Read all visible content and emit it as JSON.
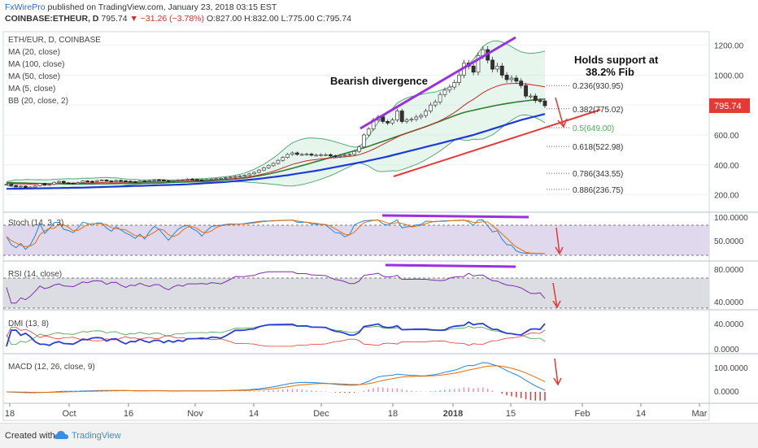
{
  "header": {
    "publisher": "FxWirePro",
    "published_text": "published on TradingView.com, January 23, 2018 03:15 EST",
    "ticker": "COINBASE:ETHEUR, D",
    "last": "795.74",
    "change": "▼ −31.26 (−3.78%)",
    "ohlc": "O:827.00 H:832.00 L:775.00 C:795.74"
  },
  "footer": {
    "created": "Created with",
    "brand": "TradingView"
  },
  "price_legend": [
    "ETH/EUR, D, COINBASE",
    "MA (20, close)",
    "MA (100, close)",
    "MA (50, close)",
    "MA (5, close)",
    "BB (20, close, 2)"
  ],
  "annotations": {
    "divergence": "Bearish divergence",
    "support": [
      "Holds support at",
      "38.2% Fib"
    ]
  },
  "price_badge": "795.74",
  "fib_levels": [
    {
      "label": "0.236(930.95)",
      "value": 930.95,
      "color": "#333333"
    },
    {
      "label": "0.382(775.02)",
      "value": 775.02,
      "color": "#333333"
    },
    {
      "label": "0.5(649.00)",
      "value": 649.0,
      "color": "#4caf50"
    },
    {
      "label": "0.618(522.98)",
      "value": 522.98,
      "color": "#333333"
    },
    {
      "label": "0.786(343.55)",
      "value": 343.55,
      "color": "#333333"
    },
    {
      "label": "0.886(236.75)",
      "value": 236.75,
      "color": "#333333"
    }
  ],
  "panes": {
    "stoch": {
      "label": "Stoch (14, 3, 3)",
      "ticks": [
        "100.0000",
        "50.0000"
      ]
    },
    "rsi": {
      "label": "RSI (14, close)",
      "ticks": [
        "80.0000",
        "40.0000"
      ]
    },
    "dmi": {
      "label": "DMI (13, 8)",
      "ticks": [
        "40.0000",
        "0.0000"
      ]
    },
    "macd": {
      "label": "MACD (12, 26, close, 9)",
      "ticks": [
        "100.0000",
        "0.0000"
      ]
    }
  },
  "x_labels": [
    "18",
    "Oct",
    "16",
    "Nov",
    "14",
    "Dec",
    "18",
    "2018",
    "15",
    "Feb",
    "14",
    "Mar"
  ],
  "chart_data": {
    "type": "line",
    "y_ticks": [
      1200,
      1000,
      800,
      600,
      400,
      200
    ],
    "ylim": [
      100,
      1290
    ],
    "last_close": 795.74,
    "x_labels": [
      "18",
      "Oct",
      "16",
      "Nov",
      "14",
      "Dec",
      "18",
      "2018",
      "15",
      "Feb",
      "14",
      "Mar"
    ],
    "fib_levels": [
      930.95,
      775.02,
      649.0,
      522.98,
      343.55,
      236.75
    ],
    "close": [
      270,
      262,
      255,
      258,
      248,
      252,
      260,
      275,
      265,
      270,
      283,
      290,
      280,
      278,
      275,
      282,
      292,
      290,
      288,
      295,
      298,
      292,
      290,
      296,
      293,
      290,
      288,
      285,
      292,
      290,
      295,
      300,
      298,
      294,
      290,
      294,
      298,
      300,
      305,
      302,
      300,
      298,
      302,
      305,
      308,
      310,
      315,
      318,
      322,
      325,
      330,
      340,
      350,
      365,
      380,
      395,
      410,
      430,
      450,
      470,
      480,
      470,
      470,
      472,
      465,
      465,
      468,
      468,
      460,
      455,
      462,
      465,
      470,
      490,
      520,
      600,
      640,
      700,
      720,
      690,
      680,
      700,
      760,
      690,
      700,
      705,
      720,
      730,
      760,
      800,
      820,
      870,
      900,
      920,
      950,
      1000,
      1080,
      1060,
      1020,
      1130,
      1170,
      1100,
      1040,
      1060,
      1000,
      970,
      980,
      960,
      930,
      860,
      860,
      830,
      827,
      795.74
    ],
    "ma20": [
      276,
      275,
      274,
      273,
      272,
      271,
      271,
      272,
      272,
      273,
      274,
      275,
      276,
      277,
      277,
      278,
      279,
      280,
      280,
      281,
      282,
      283,
      283,
      284,
      284,
      285,
      285,
      286,
      286,
      287,
      287,
      288,
      289,
      290,
      290,
      291,
      292,
      293,
      294,
      295,
      296,
      297,
      298,
      299,
      300,
      302,
      304,
      306,
      309,
      312,
      316,
      321,
      326,
      333,
      340,
      349,
      358,
      368,
      380,
      392,
      403,
      412,
      420,
      427,
      432,
      436,
      440,
      443,
      446,
      448,
      451,
      454,
      457,
      461,
      468,
      478,
      490,
      505,
      520,
      537,
      553,
      569,
      586,
      600,
      613,
      624,
      634,
      644,
      656,
      668,
      680,
      695,
      712,
      730,
      750,
      772,
      797,
      819,
      838,
      860,
      882,
      900,
      914,
      927,
      936,
      942,
      944,
      945,
      944,
      941,
      937,
      932,
      927,
      921
    ],
    "ma50": [
      282,
      281,
      280,
      279,
      278,
      277,
      276,
      275,
      275,
      274,
      274,
      274,
      273,
      273,
      273,
      273,
      273,
      273,
      273,
      274,
      274,
      274,
      275,
      275,
      276,
      276,
      277,
      277,
      278,
      278,
      279,
      280,
      280,
      281,
      282,
      283,
      284,
      285,
      286,
      287,
      289,
      290,
      292,
      294,
      296,
      298,
      300,
      303,
      306,
      309,
      313,
      317,
      322,
      327,
      333,
      339,
      346,
      353,
      361,
      369,
      377,
      386,
      395,
      404,
      413,
      422,
      431,
      440,
      449,
      458,
      467,
      476,
      485,
      494,
      504,
      514,
      524,
      535,
      546,
      557,
      568,
      579,
      590,
      601,
      612,
      623,
      634,
      645,
      656,
      668,
      680,
      692,
      704,
      716,
      728,
      740,
      750,
      758,
      765,
      772,
      779,
      786,
      793,
      799,
      805,
      810,
      815,
      820,
      824,
      828,
      832,
      835,
      838,
      840
    ],
    "ma100": [
      240,
      240,
      241,
      241,
      242,
      242,
      243,
      243,
      244,
      244,
      245,
      245,
      246,
      246,
      247,
      247,
      248,
      249,
      250,
      251,
      252,
      253,
      254,
      255,
      256,
      257,
      258,
      259,
      260,
      261,
      262,
      263,
      264,
      265,
      266,
      267,
      268,
      269,
      270,
      272,
      274,
      276,
      278,
      280,
      282,
      284,
      286,
      289,
      292,
      295,
      298,
      301,
      304,
      307,
      311,
      315,
      319,
      323,
      327,
      331,
      336,
      341,
      346,
      351,
      356,
      361,
      367,
      373,
      379,
      385,
      391,
      397,
      403,
      409,
      415,
      421,
      428,
      435,
      442,
      449,
      456,
      464,
      472,
      480,
      488,
      496,
      504,
      512,
      520,
      528,
      536,
      544,
      552,
      560,
      568,
      576,
      584,
      592,
      600,
      610,
      620,
      630,
      640,
      650,
      660,
      670,
      680,
      690,
      700,
      708,
      716,
      724,
      732,
      740
    ]
  }
}
